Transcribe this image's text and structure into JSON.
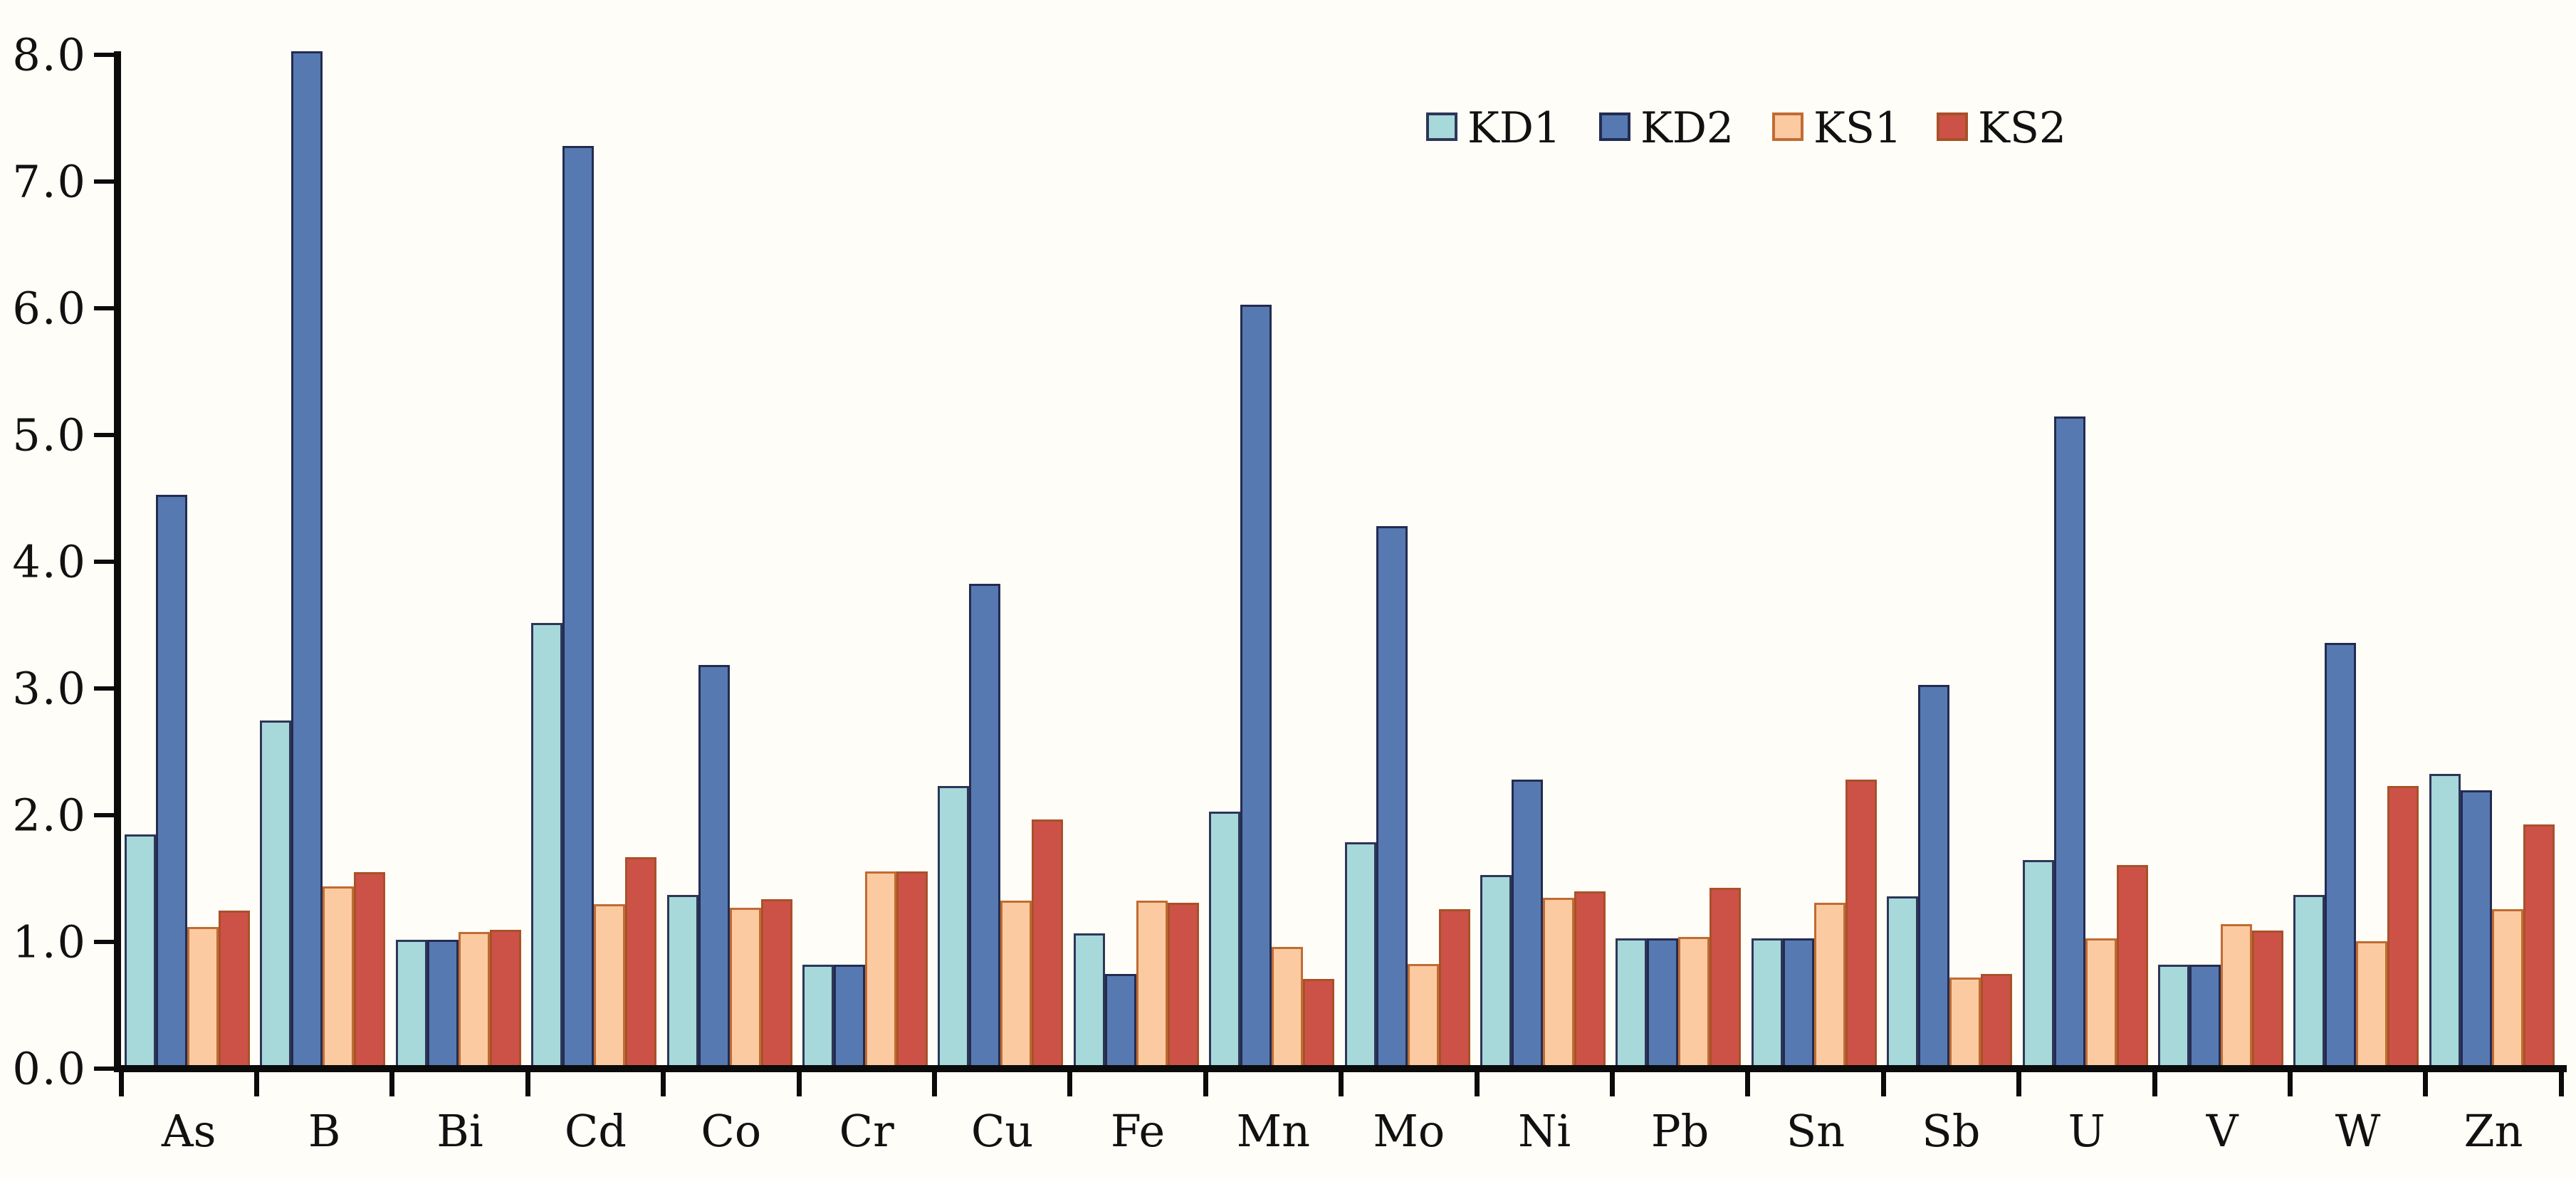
{
  "figure": {
    "background_color": "#fffdf7",
    "axis_color": "#0b0b0b"
  },
  "chart_data": {
    "type": "bar",
    "title": "",
    "xlabel": "",
    "ylabel": "",
    "ylim": [
      0,
      8
    ],
    "ytick_step": 1.0,
    "ytick_labels": [
      "0.0",
      "1.0",
      "2.0",
      "3.0",
      "4.0",
      "5.0",
      "6.0",
      "7.0",
      "8.0"
    ],
    "grid": false,
    "legend_position": "top-right",
    "categories": [
      "As",
      "B",
      "Bi",
      "Cd",
      "Co",
      "Cr",
      "Cu",
      "Fe",
      "Mn",
      "Mo",
      "Ni",
      "Pb",
      "Sn",
      "Sb",
      "U",
      "V",
      "W",
      "Zn"
    ],
    "series": [
      {
        "name": "KD1",
        "fill": "#a7d9da",
        "border": "#2e3658",
        "values": [
          1.82,
          2.72,
          0.99,
          3.49,
          1.34,
          0.79,
          2.2,
          1.04,
          2.0,
          1.76,
          1.5,
          1.0,
          1.0,
          1.33,
          1.62,
          0.79,
          1.34,
          2.3
        ]
      },
      {
        "name": "KD2",
        "fill": "#5779b1",
        "border": "#232c50",
        "values": [
          4.5,
          8.0,
          0.99,
          7.25,
          3.16,
          0.79,
          3.8,
          0.72,
          6.0,
          4.25,
          2.25,
          1.0,
          1.0,
          3.0,
          5.12,
          0.79,
          3.33,
          2.17
        ]
      },
      {
        "name": "KS1",
        "fill": "#fccaa0",
        "border": "#c06c34",
        "values": [
          1.09,
          1.41,
          1.05,
          1.27,
          1.24,
          1.53,
          1.3,
          1.3,
          0.93,
          0.8,
          1.32,
          1.01,
          1.28,
          0.69,
          1.0,
          1.11,
          0.98,
          1.23
        ]
      },
      {
        "name": "KS2",
        "fill": "#cc5247",
        "border": "#a85129",
        "values": [
          1.22,
          1.52,
          1.07,
          1.64,
          1.31,
          1.53,
          1.94,
          1.28,
          0.68,
          1.23,
          1.37,
          1.4,
          2.25,
          0.72,
          1.58,
          1.06,
          2.2,
          1.9
        ]
      }
    ]
  }
}
